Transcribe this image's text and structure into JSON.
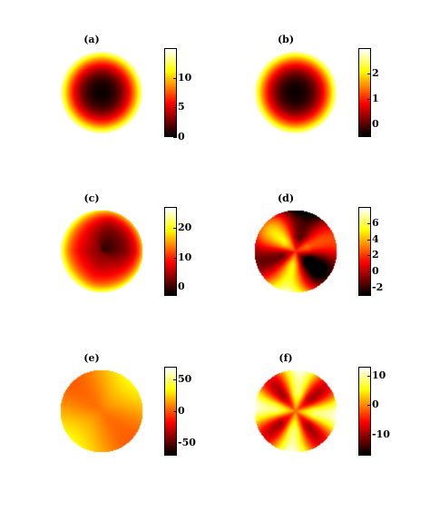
{
  "chart_data": [
    {
      "type": "heatmap",
      "title": "(a)",
      "shape": "disk",
      "pattern": "radial-min-center",
      "clim": [
        0,
        15
      ],
      "colorbar_ticks": [
        0,
        5,
        10
      ],
      "colorbar_tick_labels": [
        "0",
        "5",
        "10"
      ],
      "colormap": "hot"
    },
    {
      "type": "heatmap",
      "title": "(b)",
      "shape": "disk",
      "pattern": "radial-min-center",
      "clim": [
        -0.5,
        3
      ],
      "colorbar_ticks": [
        0,
        1,
        2
      ],
      "colorbar_tick_labels": [
        "0",
        "1",
        "2"
      ],
      "colormap": "hot"
    },
    {
      "type": "heatmap",
      "title": "(c)",
      "shape": "disk",
      "pattern": "irregular-dark-top",
      "clim": [
        -3,
        27
      ],
      "colorbar_ticks": [
        0,
        10,
        20
      ],
      "colorbar_tick_labels": [
        "0",
        "10",
        "20"
      ],
      "colormap": "hot"
    },
    {
      "type": "heatmap",
      "title": "(d)",
      "shape": "disk",
      "pattern": "angular-sectors",
      "clim": [
        -3,
        8
      ],
      "colorbar_ticks": [
        -2,
        0,
        2,
        4,
        6
      ],
      "colorbar_tick_labels": [
        "-2",
        "0",
        "2",
        "4",
        "6"
      ],
      "colormap": "hot"
    },
    {
      "type": "heatmap",
      "title": "(e)",
      "shape": "disk",
      "pattern": "smooth-mid",
      "clim": [
        -70,
        70
      ],
      "colorbar_ticks": [
        -50,
        0,
        50
      ],
      "colorbar_tick_labels": [
        "-50",
        "0",
        "50"
      ],
      "colormap": "hot"
    },
    {
      "type": "heatmap",
      "title": "(f)",
      "shape": "disk",
      "pattern": "four-fold-angular",
      "clim": [
        -17,
        13
      ],
      "colorbar_ticks": [
        -10,
        0,
        10
      ],
      "colorbar_tick_labels": [
        "-10",
        "0",
        "10"
      ],
      "colormap": "hot"
    }
  ]
}
